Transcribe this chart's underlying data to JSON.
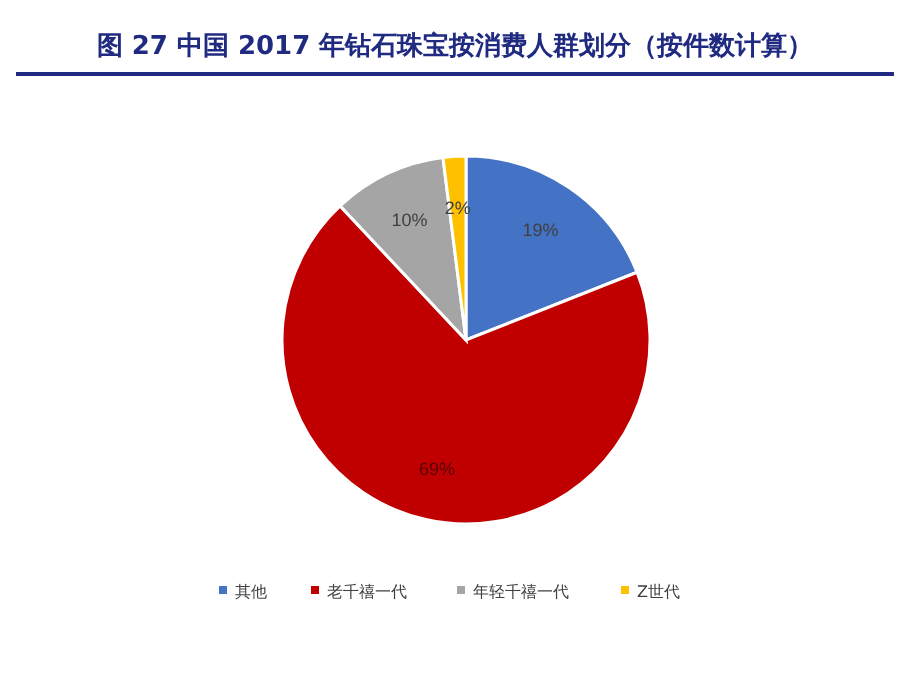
{
  "chart_data": {
    "type": "pie",
    "title": "图 27 中国 2017 年钻石珠宝按消费人群划分（按件数计算）",
    "categories": [
      "其他",
      "老千禧一代",
      "年轻千禧一代",
      "Z世代"
    ],
    "values": [
      19,
      69,
      10,
      2
    ],
    "colors": [
      "#4472c4",
      "#c00000",
      "#a5a5a5",
      "#ffc000"
    ],
    "value_labels": [
      "19%",
      "69%",
      "10%",
      "2%"
    ],
    "legend": "bottom"
  }
}
